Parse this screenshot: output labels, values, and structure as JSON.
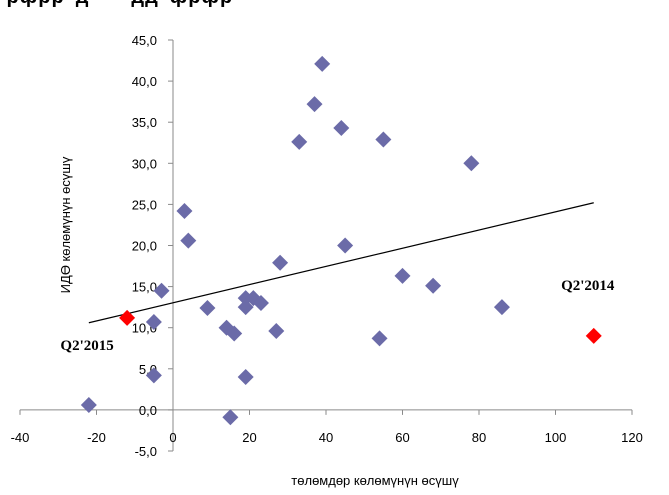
{
  "chart_data": {
    "type": "scatter",
    "title": "",
    "xlabel": "төлөмдөр көлөмүнүн өсүшү",
    "ylabel": "ИДӨ көлөмүнүн өсүшү",
    "xlim": [
      -40,
      120
    ],
    "ylim": [
      -5,
      45
    ],
    "x_ticks": [
      -40,
      -20,
      0,
      20,
      40,
      60,
      80,
      100,
      120
    ],
    "y_ticks": [
      "-5,0",
      "0,0",
      "5,0",
      "10,0",
      "15,0",
      "20,0",
      "25,0",
      "30,0",
      "35,0",
      "40,0",
      "45,0"
    ],
    "grid": false,
    "series": [
      {
        "color": "#6B6BA8",
        "marker": "diamond",
        "points": [
          [
            -22,
            0.6
          ],
          [
            -5,
            4.2
          ],
          [
            -5,
            10.7
          ],
          [
            -3,
            14.5
          ],
          [
            3,
            24.2
          ],
          [
            4,
            20.6
          ],
          [
            9,
            12.4
          ],
          [
            14,
            10.0
          ],
          [
            15,
            -0.9
          ],
          [
            16,
            9.3
          ],
          [
            19,
            4.0
          ],
          [
            19,
            12.5
          ],
          [
            19,
            13.6
          ],
          [
            21,
            13.6
          ],
          [
            23,
            13.0
          ],
          [
            27,
            9.6
          ],
          [
            28,
            17.9
          ],
          [
            33,
            32.6
          ],
          [
            37,
            37.2
          ],
          [
            39,
            42.1
          ],
          [
            44,
            34.3
          ],
          [
            45,
            20.0
          ],
          [
            54,
            8.7
          ],
          [
            55,
            32.9
          ],
          [
            60,
            16.3
          ],
          [
            68,
            15.1
          ],
          [
            78,
            30.0
          ],
          [
            86,
            12.5
          ]
        ]
      },
      {
        "color": "#FF0000",
        "marker": "diamond",
        "points": [
          [
            -12,
            11.2
          ],
          [
            110,
            9.0
          ]
        ]
      }
    ],
    "trendline": {
      "type": "linear",
      "x": [
        -22,
        110
      ],
      "y": [
        10.6,
        25.2
      ],
      "color": "#000000"
    },
    "annotations": [
      {
        "text": "Q2'2015",
        "x": -12,
        "y": 11.2
      },
      {
        "text": "Q2'2014",
        "x": 110,
        "y": 9.0
      }
    ],
    "title_fragment": "’рфрр д  дд фрфр"
  }
}
